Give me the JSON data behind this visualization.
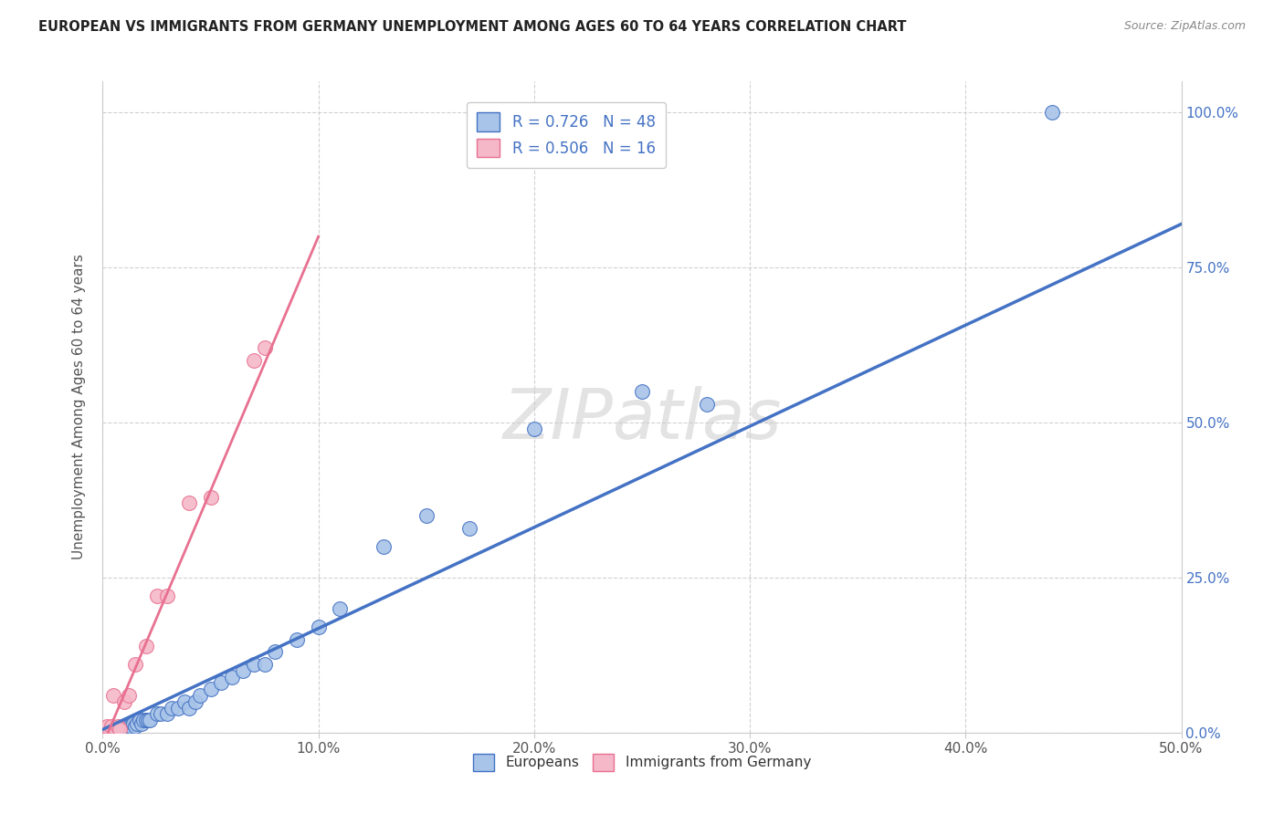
{
  "title": "EUROPEAN VS IMMIGRANTS FROM GERMANY UNEMPLOYMENT AMONG AGES 60 TO 64 YEARS CORRELATION CHART",
  "source": "Source: ZipAtlas.com",
  "xlim": [
    0.0,
    0.5
  ],
  "ylim": [
    0.0,
    1.05
  ],
  "blue_R": 0.726,
  "blue_N": 48,
  "pink_R": 0.506,
  "pink_N": 16,
  "blue_color": "#a8c4e8",
  "pink_color": "#f5b8c8",
  "blue_line_color": "#4472c4",
  "pink_line_color": "#e87090",
  "watermark": "ZIPatlas",
  "legend_label_blue": "Europeans",
  "legend_label_pink": "Immigrants from Germany",
  "blue_scatter_x": [
    0.0,
    0.002,
    0.003,
    0.004,
    0.005,
    0.006,
    0.007,
    0.008,
    0.009,
    0.01,
    0.01,
    0.012,
    0.013,
    0.014,
    0.015,
    0.016,
    0.017,
    0.018,
    0.019,
    0.02,
    0.021,
    0.022,
    0.025,
    0.027,
    0.03,
    0.032,
    0.035,
    0.038,
    0.04,
    0.043,
    0.045,
    0.05,
    0.055,
    0.06,
    0.065,
    0.07,
    0.075,
    0.08,
    0.09,
    0.1,
    0.11,
    0.13,
    0.15,
    0.17,
    0.2,
    0.25,
    0.28,
    0.44
  ],
  "blue_scatter_y": [
    0.005,
    0.005,
    0.005,
    0.005,
    0.005,
    0.005,
    0.005,
    0.005,
    0.008,
    0.01,
    0.01,
    0.01,
    0.01,
    0.015,
    0.01,
    0.015,
    0.02,
    0.015,
    0.02,
    0.02,
    0.02,
    0.02,
    0.03,
    0.03,
    0.03,
    0.04,
    0.04,
    0.05,
    0.04,
    0.05,
    0.06,
    0.07,
    0.08,
    0.09,
    0.1,
    0.11,
    0.11,
    0.13,
    0.15,
    0.17,
    0.2,
    0.3,
    0.35,
    0.33,
    0.49,
    0.55,
    0.53,
    1.0
  ],
  "pink_scatter_x": [
    0.0,
    0.002,
    0.004,
    0.005,
    0.007,
    0.008,
    0.01,
    0.012,
    0.015,
    0.02,
    0.025,
    0.03,
    0.04,
    0.05,
    0.07,
    0.075
  ],
  "pink_scatter_y": [
    0.005,
    0.01,
    0.01,
    0.06,
    0.01,
    0.005,
    0.05,
    0.06,
    0.11,
    0.14,
    0.22,
    0.22,
    0.37,
    0.38,
    0.6,
    0.62
  ],
  "blue_line_x0": 0.0,
  "blue_line_x1": 0.5,
  "blue_line_y0": 0.005,
  "blue_line_y1": 0.82,
  "pink_line_x0": 0.0,
  "pink_line_x1": 0.1,
  "pink_line_y0": -0.02,
  "pink_line_y1": 0.8
}
